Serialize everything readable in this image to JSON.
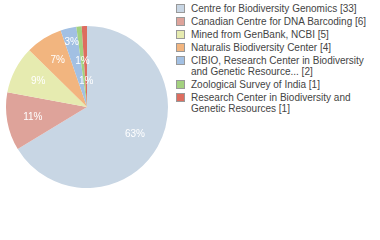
{
  "chart_data": {
    "type": "pie",
    "categories": [
      "Centre for Biodiversity Genomics [33]",
      "Canadian Centre for DNA Barcoding [6]",
      "Mined from GenBank, NCBI [5]",
      "Naturalis Biodiversity Center [4]",
      "CIBIO, Research Center in Biodiversity and Genetic Resource... [2]",
      "Zoological Survey of India [1]",
      "Research Center in Biodiversity and Genetic Resources [1]"
    ],
    "values": [
      63,
      11,
      9,
      7,
      3,
      1,
      1
    ],
    "value_labels": [
      "63%",
      "11%",
      "9%",
      "7%",
      "3%",
      "1%",
      "1%"
    ],
    "colors": [
      "#c8d6e4",
      "#dea39a",
      "#e6ebb0",
      "#f2b57f",
      "#a2c0e3",
      "#a3d17f",
      "#dd6d5f"
    ],
    "data_labels": true,
    "legend": "right"
  }
}
